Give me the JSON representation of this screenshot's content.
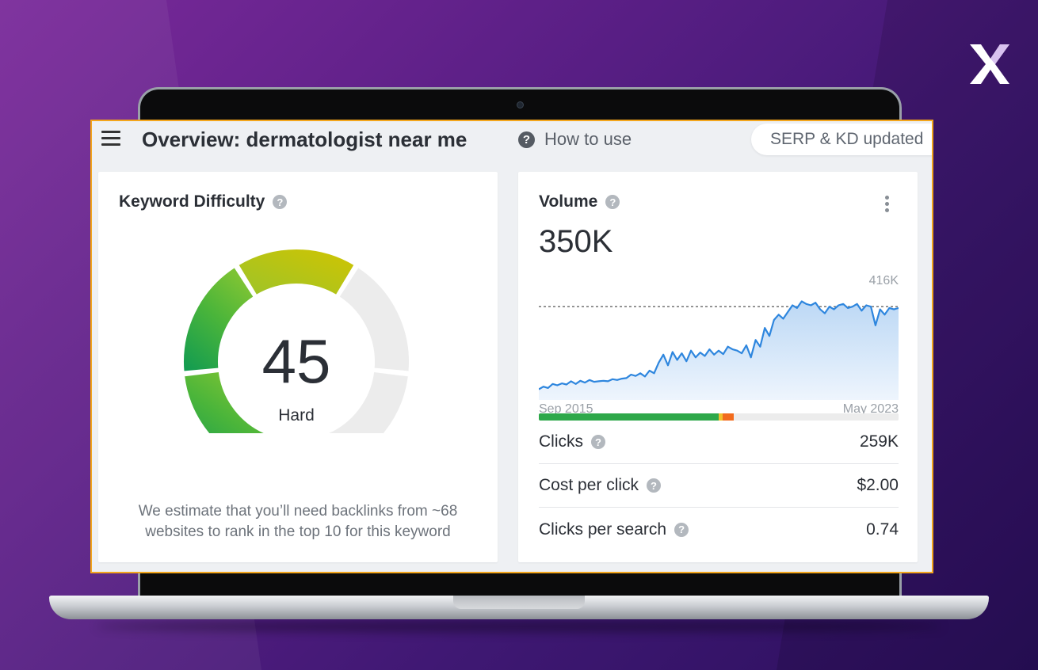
{
  "header": {
    "title": "Overview: dermatologist near me",
    "help_label": "How to use",
    "status_text": "SERP & KD updated"
  },
  "keyword_difficulty": {
    "title": "Keyword Difficulty",
    "score": "45",
    "score_value": 45,
    "level": "Hard",
    "note": "We estimate that you’ll need backlinks from ~68 websites to rank in the top 10 for this keyword"
  },
  "volume": {
    "title": "Volume",
    "value": "350K",
    "chart_max_label": "416K",
    "start_label": "Sep 2015",
    "end_label": "May 2023"
  },
  "metrics": [
    {
      "name": "Clicks",
      "value": "259K"
    },
    {
      "name": "Cost per click",
      "value": "$2.00"
    },
    {
      "name": "Clicks per search",
      "value": "0.74"
    }
  ],
  "click_distribution": [
    {
      "share": 0.5,
      "color": "#2ea84a"
    },
    {
      "share": 0.012,
      "color": "#f2c02c"
    },
    {
      "share": 0.03,
      "color": "#f26b1d"
    },
    {
      "share": 0.458,
      "color": "#ececec"
    }
  ],
  "chart_data": {
    "type": "area",
    "ylim": [
      0,
      416
    ],
    "reference_line": 350,
    "x_labels": [
      "Sep 2015",
      "May 2023"
    ],
    "series": [
      {
        "values": [
          40,
          50,
          45,
          60,
          55,
          62,
          58,
          70,
          60,
          72,
          65,
          75,
          68,
          70,
          72,
          70,
          78,
          75,
          80,
          82,
          95,
          90,
          100,
          88,
          110,
          100,
          140,
          170,
          130,
          180,
          150,
          175,
          145,
          185,
          160,
          178,
          165,
          190,
          170,
          185,
          172,
          200,
          190,
          185,
          175,
          205,
          160,
          225,
          200,
          270,
          240,
          300,
          320,
          305,
          330,
          355,
          345,
          370,
          360,
          355,
          365,
          340,
          325,
          350,
          340,
          355,
          360,
          345,
          350,
          360,
          335,
          355,
          350,
          280,
          340,
          320,
          345,
          340,
          345
        ]
      }
    ]
  },
  "colors": {
    "accent_border": "#f3a51b",
    "chart_line": "#2e86de",
    "gauge_empty": "#ececec"
  }
}
